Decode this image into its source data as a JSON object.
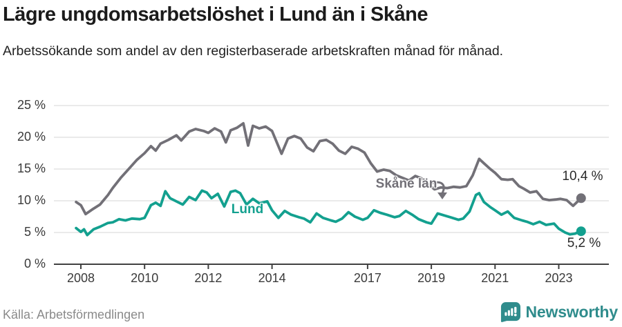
{
  "header": {
    "title": "Lägre ungdomsarbetslöshet i Lund än i Skåne",
    "subtitle": "Arbetssökande som andel av den registerbaserade arbetskraften månad för månad."
  },
  "colors": {
    "skane_gray": "#727077",
    "lund_teal": "#13a08f",
    "axis": "#404040",
    "gridline": "#e3e3e3",
    "tick_text": "#3a3a3a",
    "logo_teal": "#2f8c8c",
    "source_text": "#8a8a8a"
  },
  "chart_data": {
    "type": "line",
    "title": "Lägre ungdomsarbetslöshet i Lund än i Skåne",
    "subtitle": "Arbetssökande som andel av den registerbaserade arbetskraften månad för månad.",
    "xlabel": "",
    "ylabel": "",
    "grid": true,
    "x_range": [
      2007.85,
      2023.9
    ],
    "ylim": [
      0,
      25
    ],
    "y_ticks": [
      {
        "label": "0 %",
        "value": 0
      },
      {
        "label": "5 %",
        "value": 5
      },
      {
        "label": "10 %",
        "value": 10
      },
      {
        "label": "15 %",
        "value": 15
      },
      {
        "label": "20 %",
        "value": 20
      },
      {
        "label": "25 %",
        "value": 25
      }
    ],
    "x_ticks": [
      {
        "label": "2008",
        "year": 2008
      },
      {
        "label": "2010",
        "year": 2010
      },
      {
        "label": "2012",
        "year": 2012
      },
      {
        "label": "2014",
        "year": 2014
      },
      {
        "label": "2017",
        "year": 2017
      },
      {
        "label": "2019",
        "year": 2019
      },
      {
        "label": "2021",
        "year": 2021
      },
      {
        "label": "2023",
        "year": 2023
      }
    ],
    "series": [
      {
        "name": "Skåne län",
        "color": "#727077",
        "end_label": "10,4 %",
        "end_value": 10.4,
        "points": [
          [
            2007.85,
            9.8
          ],
          [
            2008.0,
            9.3
          ],
          [
            2008.15,
            7.9
          ],
          [
            2008.35,
            8.6
          ],
          [
            2008.6,
            9.4
          ],
          [
            2008.85,
            10.9
          ],
          [
            2009.0,
            12.0
          ],
          [
            2009.25,
            13.6
          ],
          [
            2009.5,
            15.0
          ],
          [
            2009.75,
            16.4
          ],
          [
            2010.0,
            17.5
          ],
          [
            2010.2,
            18.6
          ],
          [
            2010.35,
            17.9
          ],
          [
            2010.5,
            19.0
          ],
          [
            2010.75,
            19.6
          ],
          [
            2011.0,
            20.3
          ],
          [
            2011.15,
            19.5
          ],
          [
            2011.4,
            20.9
          ],
          [
            2011.6,
            21.3
          ],
          [
            2011.85,
            21.0
          ],
          [
            2012.0,
            20.7
          ],
          [
            2012.2,
            21.4
          ],
          [
            2012.4,
            20.9
          ],
          [
            2012.55,
            19.2
          ],
          [
            2012.7,
            21.1
          ],
          [
            2012.9,
            21.5
          ],
          [
            2013.1,
            22.2
          ],
          [
            2013.25,
            18.7
          ],
          [
            2013.4,
            21.8
          ],
          [
            2013.6,
            21.4
          ],
          [
            2013.8,
            21.7
          ],
          [
            2014.0,
            21.0
          ],
          [
            2014.3,
            17.4
          ],
          [
            2014.5,
            19.8
          ],
          [
            2014.7,
            20.2
          ],
          [
            2014.9,
            19.8
          ],
          [
            2015.1,
            18.4
          ],
          [
            2015.3,
            17.8
          ],
          [
            2015.5,
            19.4
          ],
          [
            2015.7,
            19.6
          ],
          [
            2015.9,
            19.0
          ],
          [
            2016.1,
            17.9
          ],
          [
            2016.3,
            17.4
          ],
          [
            2016.5,
            18.5
          ],
          [
            2016.7,
            18.2
          ],
          [
            2016.9,
            17.6
          ],
          [
            2017.1,
            15.9
          ],
          [
            2017.3,
            14.6
          ],
          [
            2017.5,
            14.9
          ],
          [
            2017.7,
            14.7
          ],
          [
            2017.9,
            14.0
          ],
          [
            2018.1,
            13.6
          ],
          [
            2018.3,
            13.2
          ],
          [
            2018.5,
            13.9
          ],
          [
            2018.7,
            13.5
          ],
          [
            2018.9,
            12.6
          ],
          [
            2019.1,
            11.8
          ],
          [
            2019.3,
            12.1
          ],
          [
            2019.5,
            12.0
          ],
          [
            2019.7,
            12.2
          ],
          [
            2019.9,
            12.1
          ],
          [
            2020.1,
            12.3
          ],
          [
            2020.3,
            14.0
          ],
          [
            2020.5,
            16.6
          ],
          [
            2020.65,
            15.9
          ],
          [
            2020.85,
            15.0
          ],
          [
            2021.0,
            14.4
          ],
          [
            2021.2,
            13.4
          ],
          [
            2021.4,
            13.3
          ],
          [
            2021.55,
            13.4
          ],
          [
            2021.75,
            12.3
          ],
          [
            2021.9,
            11.9
          ],
          [
            2022.1,
            11.3
          ],
          [
            2022.3,
            11.5
          ],
          [
            2022.5,
            10.3
          ],
          [
            2022.7,
            10.1
          ],
          [
            2022.9,
            10.2
          ],
          [
            2023.05,
            10.3
          ],
          [
            2023.25,
            10.1
          ],
          [
            2023.45,
            9.2
          ],
          [
            2023.7,
            10.4
          ]
        ]
      },
      {
        "name": "Lund",
        "color": "#13a08f",
        "end_label": "5,2 %",
        "end_value": 5.2,
        "points": [
          [
            2007.85,
            5.7
          ],
          [
            2008.0,
            5.1
          ],
          [
            2008.1,
            5.5
          ],
          [
            2008.2,
            4.6
          ],
          [
            2008.4,
            5.5
          ],
          [
            2008.6,
            5.9
          ],
          [
            2008.85,
            6.5
          ],
          [
            2009.0,
            6.6
          ],
          [
            2009.2,
            7.1
          ],
          [
            2009.4,
            6.9
          ],
          [
            2009.6,
            7.2
          ],
          [
            2009.85,
            7.1
          ],
          [
            2010.0,
            7.3
          ],
          [
            2010.2,
            9.3
          ],
          [
            2010.35,
            9.7
          ],
          [
            2010.5,
            9.2
          ],
          [
            2010.65,
            11.5
          ],
          [
            2010.8,
            10.4
          ],
          [
            2011.0,
            9.9
          ],
          [
            2011.2,
            9.4
          ],
          [
            2011.4,
            10.6
          ],
          [
            2011.6,
            10.1
          ],
          [
            2011.8,
            11.6
          ],
          [
            2011.95,
            11.3
          ],
          [
            2012.1,
            10.4
          ],
          [
            2012.3,
            11.1
          ],
          [
            2012.5,
            9.1
          ],
          [
            2012.7,
            11.4
          ],
          [
            2012.85,
            11.6
          ],
          [
            2013.0,
            11.2
          ],
          [
            2013.2,
            9.4
          ],
          [
            2013.4,
            10.3
          ],
          [
            2013.6,
            9.6
          ],
          [
            2013.85,
            9.9
          ],
          [
            2014.0,
            8.5
          ],
          [
            2014.2,
            7.3
          ],
          [
            2014.4,
            8.4
          ],
          [
            2014.6,
            7.8
          ],
          [
            2014.85,
            7.4
          ],
          [
            2015.0,
            7.2
          ],
          [
            2015.2,
            6.6
          ],
          [
            2015.4,
            8.0
          ],
          [
            2015.6,
            7.3
          ],
          [
            2015.85,
            6.9
          ],
          [
            2016.0,
            6.7
          ],
          [
            2016.2,
            7.2
          ],
          [
            2016.4,
            8.2
          ],
          [
            2016.6,
            7.5
          ],
          [
            2016.85,
            7.0
          ],
          [
            2017.0,
            7.3
          ],
          [
            2017.2,
            8.5
          ],
          [
            2017.4,
            8.1
          ],
          [
            2017.6,
            7.8
          ],
          [
            2017.85,
            7.4
          ],
          [
            2018.0,
            7.6
          ],
          [
            2018.2,
            8.4
          ],
          [
            2018.4,
            7.8
          ],
          [
            2018.6,
            7.1
          ],
          [
            2018.85,
            6.6
          ],
          [
            2019.0,
            6.4
          ],
          [
            2019.2,
            8.0
          ],
          [
            2019.4,
            7.7
          ],
          [
            2019.6,
            7.4
          ],
          [
            2019.85,
            7.0
          ],
          [
            2020.0,
            7.2
          ],
          [
            2020.2,
            8.3
          ],
          [
            2020.4,
            10.9
          ],
          [
            2020.5,
            11.2
          ],
          [
            2020.65,
            9.8
          ],
          [
            2020.85,
            9.0
          ],
          [
            2021.0,
            8.5
          ],
          [
            2021.2,
            7.8
          ],
          [
            2021.4,
            8.3
          ],
          [
            2021.6,
            7.3
          ],
          [
            2021.85,
            6.9
          ],
          [
            2022.0,
            6.7
          ],
          [
            2022.2,
            6.3
          ],
          [
            2022.4,
            6.7
          ],
          [
            2022.6,
            6.2
          ],
          [
            2022.85,
            6.4
          ],
          [
            2023.0,
            5.6
          ],
          [
            2023.2,
            5.0
          ],
          [
            2023.35,
            4.7
          ],
          [
            2023.5,
            4.8
          ],
          [
            2023.7,
            5.2
          ]
        ]
      }
    ],
    "legend_position": "inline-labels"
  },
  "footer": {
    "source": "Källa: Arbetsförmedlingen",
    "logo_text": "Newsworthy"
  }
}
